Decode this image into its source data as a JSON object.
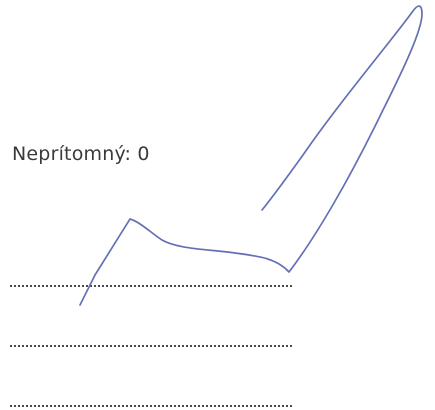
{
  "absent": {
    "label": "Neprítomný:",
    "value": "0"
  },
  "signature": {
    "ink_color": "#6470b4"
  }
}
